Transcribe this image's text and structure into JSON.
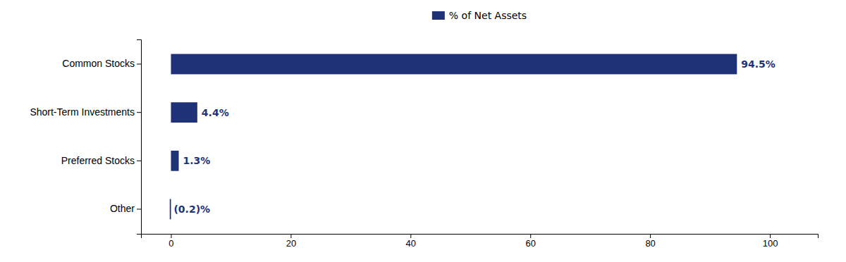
{
  "chart_data": {
    "type": "bar",
    "orientation": "horizontal",
    "categories": [
      "Common Stocks",
      "Short-Term Investments",
      "Preferred Stocks",
      "Other"
    ],
    "series": [
      {
        "name": "% of Net Assets",
        "color": "#1F3278",
        "values": [
          94.5,
          4.4,
          1.3,
          -0.2
        ],
        "value_labels": [
          "94.5%",
          "4.4%",
          "1.3%",
          "(0.2)%"
        ]
      }
    ],
    "xlim": [
      -5,
      108
    ],
    "xticks": [
      0,
      20,
      40,
      60,
      80,
      100
    ],
    "data_labels": true,
    "legend": "top",
    "grid": false
  }
}
